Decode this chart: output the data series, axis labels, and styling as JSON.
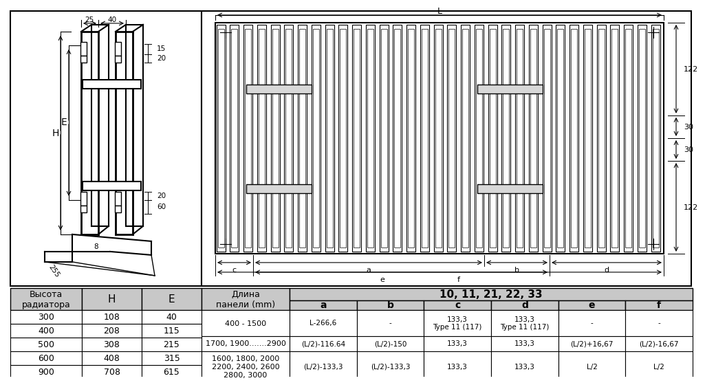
{
  "bg_color": "#ffffff",
  "border_color": "#000000",
  "gray_color": "#c8c8c8",
  "light_gray": "#e0e0e0",
  "table1_headers": [
    "Высота\nрадиатора",
    "H",
    "E"
  ],
  "table1_rows": [
    [
      "300",
      "108",
      "40"
    ],
    [
      "400",
      "208",
      "115"
    ],
    [
      "500",
      "308",
      "215"
    ],
    [
      "600",
      "408",
      "315"
    ],
    [
      "900",
      "708",
      "615"
    ]
  ],
  "table2_header_merged": "10, 11, 21, 22, 33",
  "table2_col1_header": "Длина\nпанели (mm)",
  "table2_headers": [
    "a",
    "b",
    "c",
    "d",
    "e",
    "f"
  ],
  "table2_rows": [
    [
      "400 - 1500",
      "L-266,6",
      "-",
      "133,3\nType 11 (117)",
      "133,3\nType 11 (117)",
      "-",
      "-"
    ],
    [
      "1700, 1900.......2900",
      "(L/2)-116.64",
      "(L/2)-150",
      "133,3",
      "133,3",
      "(L/2)+16,67",
      "(L/2)-16,67"
    ],
    [
      "1600, 1800, 2000\n2200, 2400, 2600\n2800, 3000",
      "(L/2)-133,3",
      "(L/2)-133,3",
      "133,3",
      "133,3",
      "L/2",
      "L/2"
    ]
  ],
  "dim_labels_right": [
    "122",
    "30",
    "30",
    "122"
  ]
}
